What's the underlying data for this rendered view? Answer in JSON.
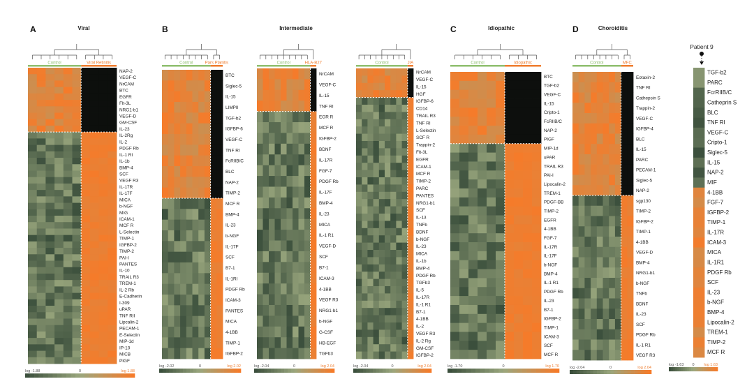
{
  "figure": {
    "colors": {
      "low": "#3b4f3c",
      "mid": "#9aa77e",
      "high": "#f57b2a",
      "black": "#0d0f0d",
      "control": "#8fbf6f",
      "case": "#ef7d2f"
    }
  },
  "chart_data": [
    {
      "type": "heatmap",
      "panel_letter": "A",
      "title": "Viral",
      "groups": [
        "Control",
        "Viral Retinitis"
      ],
      "scale_min": "log -1.88",
      "scale_mid": "0",
      "scale_max": "log 1.88",
      "rows": [
        "NAP-2",
        "VEGF-C",
        "NrCAM",
        "BTC",
        "EGFR",
        "Flt-3L",
        "NRG1-b1",
        "VEGF-D",
        "GM-CSF",
        "IL-23",
        "IL-2Rg",
        "IL-2",
        "PDGF Rb",
        "IL-1 RI",
        "IL-1b",
        "BMP-4",
        "SCF",
        "VEGF R3",
        "IL-17R",
        "IL-17F",
        "MICA",
        "b-NGF",
        "MIG",
        "ICAM-1",
        "MCF R",
        "L-Selectin",
        "TIMP-1",
        "IGFBP-2",
        "TIMP-2",
        "PAI-I",
        "PANTES",
        "IL-10",
        "TRAIL R3",
        "TREM-1",
        "IL-2 Rb",
        "E-Cadherin",
        "I-309",
        "uPAR",
        "TNF RII",
        "Lipcalin-2",
        "PECAM-1",
        "E-Selectin",
        "MIP-1d",
        "IP-10",
        "MICB",
        "PIGF"
      ]
    },
    {
      "type": "heatmap",
      "panel_letter": "B",
      "title": "Pars Planitis",
      "groups": [
        "Control",
        "Pars Planitis"
      ],
      "scale_min": "log -2.02",
      "scale_mid": "0",
      "scale_max": "log 2.02",
      "rows": [
        "BTC",
        "Siglec-5",
        "IL-15",
        "LIMPII",
        "TGF-b2",
        "IGFBP-6",
        "VEGF-C",
        "TNF RI",
        "FcRIIB/C",
        "BLC",
        "NAP-2",
        "TIMP-2",
        "MCF R",
        "BMP-4",
        "IL-23",
        "b-NGF",
        "IL-17F",
        "SCF",
        "B7-1",
        "IL-1Rl",
        "PDGF Rb",
        "ICAM-3",
        "PANTES",
        "MICA",
        "4-1BB",
        "TIMP-1",
        "IGFBP-2"
      ]
    },
    {
      "type": "heatmap",
      "panel_letter": "",
      "title": "Intermediate",
      "groups": [
        "Control",
        "HLA-B27"
      ],
      "scale_min": "log -2.04",
      "scale_mid": "0",
      "scale_max": "log 2.04",
      "rows": [
        "NrCAM",
        "VEGF-C",
        "IL-15",
        "TNF RI",
        "EGR R",
        "MCF R",
        "IGFBP-2",
        "BDNF",
        "IL-17R",
        "FGF-7",
        "PDGF Rb",
        "IL-17F",
        "BMP-4",
        "IL-23",
        "MICA",
        "IL-1 R1",
        "VEGF-D",
        "SCF",
        "B7-1",
        "ICAM-3",
        "4-1BB",
        "VEGF R3",
        "NRG1-b1",
        "b-NGF",
        "G-CSF",
        "HB-EGF",
        "TGFb3"
      ]
    },
    {
      "type": "heatmap",
      "panel_letter": "",
      "title": "JIA",
      "groups": [
        "Control",
        "JIA"
      ],
      "scale_min": "log -2.04",
      "scale_mid": "0",
      "scale_max": "log 2.04",
      "rows": [
        "NrCAM",
        "VEGF-C",
        "IL-15",
        "HGF",
        "IGFBP-6",
        "CD14",
        "TRAIL R3",
        "TNF RI",
        "L-Selectin",
        "SCF R",
        "Trappin-2",
        "Flt-3L",
        "EGFR",
        "ICAM-1",
        "MCF R",
        "TIMP-2",
        "PARC",
        "PANTES",
        "NRG1-b1",
        "SCF",
        "IL-13",
        "TNFb",
        "BDNF",
        "b-NGF",
        "IL-23",
        "MICA",
        "IL-1b",
        "BMP-4",
        "PDGF Rb",
        "TGFb3",
        "IL-5",
        "IL-17R",
        "IL-1 R1",
        "B7-1",
        "4-1BB",
        "IL-2",
        "VEGF R3",
        "IL-2 Rg",
        "GM-CSF",
        "IGFBP-2"
      ]
    },
    {
      "type": "heatmap",
      "panel_letter": "C",
      "title": "Idiopathic",
      "groups": [
        "Control",
        "Idiopathic"
      ],
      "scale_min": "log -1.70",
      "scale_mid": "0",
      "scale_max": "log 1.70",
      "rows": [
        "BTC",
        "TGF-b2",
        "VEGF-C",
        "IL-15",
        "Cripto-1",
        "FcRIIB/C",
        "NAP-2",
        "PIGF",
        "MIP-1d",
        "uPAR",
        "TRAIL R3",
        "PAI-I",
        "Lipocalin-2",
        "TREM-1",
        "PDGF-BB",
        "TIMP-2",
        "EGFR",
        "4-1BB",
        "FGF-7",
        "IL-17R",
        "IL-17F",
        "b-NGF",
        "BMP-4",
        "IL-1 R1",
        "PDGF Rb",
        "IL-23",
        "B7-1",
        "IGFBP-2",
        "TIMP-1",
        "ICAM-3",
        "SCF",
        "MCF R"
      ]
    },
    {
      "type": "heatmap",
      "panel_letter": "D",
      "title": "Choroiditis",
      "groups": [
        "Control",
        "MFC"
      ],
      "scale_min": "log -2.04",
      "scale_mid": "0",
      "scale_max": "log 2.04",
      "rows": [
        "Eotaxin-2",
        "TNF RI",
        "Cathepsin S",
        "Trappin-2",
        "VEGF-C",
        "IGFBP-4",
        "BLC",
        "IL-15",
        "PARC",
        "PECAM-1",
        "Siglec-5",
        "NAP-2",
        "sgp130",
        "TIMP-2",
        "IGFBP-2",
        "TIMP-1",
        "4-1BB",
        "VEGF-D",
        "BMP-4",
        "NRG1-b1",
        "b-NGF",
        "TNFb",
        "BDNF",
        "IL-23",
        "SCF",
        "PDGF Rb",
        "IL-1 R1",
        "VEGF R3"
      ]
    },
    {
      "type": "heatmap",
      "panel_letter": "",
      "title": "Patient 9",
      "groups": [
        "Patient 9"
      ],
      "scale_min": "log -1.63",
      "scale_mid": "0",
      "scale_max": "log 1.63",
      "rows": [
        "TGF-b2",
        "PARC",
        "FcrRIIB/C",
        "Catheprin S",
        "BLC",
        "TNF RI",
        "VEGF-C",
        "Cripto-1",
        "Siglec-5",
        "IL-15",
        "NAP-2",
        "MIF",
        "4-1BB",
        "FGF-7",
        "IGFBP-2",
        "TIMP-1",
        "IL-17R",
        "ICAM-3",
        "MICA",
        "IL-1R1",
        "PDGF Rb",
        "SCF",
        "IL-23",
        "b-NGF",
        "BMP-4",
        "Lipocalin-2",
        "TREM-1",
        "TIMP-2",
        "MCF R"
      ]
    }
  ]
}
